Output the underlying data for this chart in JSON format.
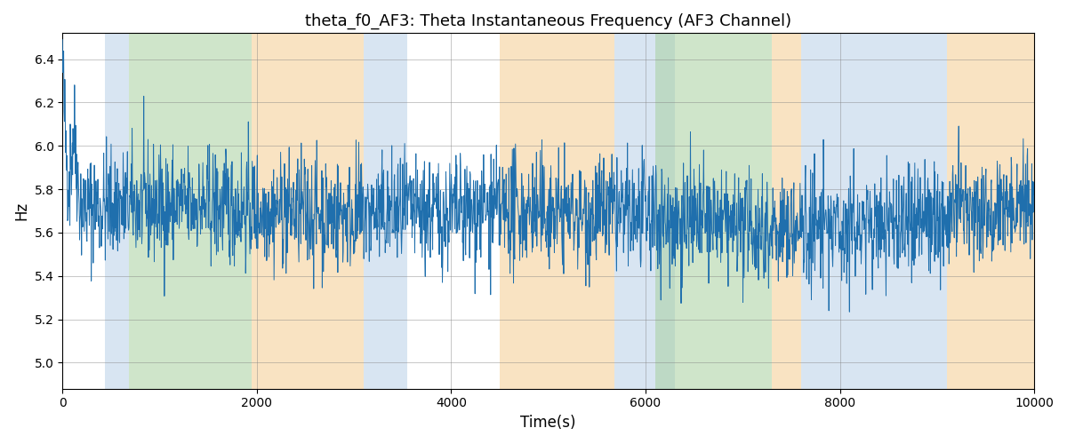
{
  "title": "theta_f0_AF3: Theta Instantaneous Frequency (AF3 Channel)",
  "xlabel": "Time(s)",
  "ylabel": "Hz",
  "xlim": [
    0,
    10000
  ],
  "ylim": [
    4.88,
    6.52
  ],
  "yticks": [
    5.0,
    5.2,
    5.4,
    5.6,
    5.8,
    6.0,
    6.2,
    6.4
  ],
  "xticks": [
    0,
    2000,
    4000,
    6000,
    8000,
    10000
  ],
  "line_color": "#1f6fad",
  "line_width": 0.7,
  "seed": 42,
  "n_points": 2500,
  "bg_bands": [
    {
      "xmin": 440,
      "xmax": 680,
      "color": "#b8d0e8",
      "alpha": 0.55
    },
    {
      "xmin": 680,
      "xmax": 1950,
      "color": "#a8d0a0",
      "alpha": 0.55
    },
    {
      "xmin": 1950,
      "xmax": 3100,
      "color": "#f5cc90",
      "alpha": 0.55
    },
    {
      "xmin": 3100,
      "xmax": 3550,
      "color": "#b8d0e8",
      "alpha": 0.55
    },
    {
      "xmin": 4500,
      "xmax": 5680,
      "color": "#f5cc90",
      "alpha": 0.55
    },
    {
      "xmin": 5680,
      "xmax": 6100,
      "color": "#b8d0e8",
      "alpha": 0.55
    },
    {
      "xmin": 6100,
      "xmax": 6300,
      "color": "#b8d0e8",
      "alpha": 0.55
    },
    {
      "xmin": 6100,
      "xmax": 7300,
      "color": "#a8d0a0",
      "alpha": 0.55
    },
    {
      "xmin": 7300,
      "xmax": 7600,
      "color": "#f5cc90",
      "alpha": 0.55
    },
    {
      "xmin": 7600,
      "xmax": 9100,
      "color": "#b8d0e8",
      "alpha": 0.55
    },
    {
      "xmin": 9100,
      "xmax": 10000,
      "color": "#f5cc90",
      "alpha": 0.55
    }
  ],
  "figsize": [
    12,
    5
  ],
  "dpi": 100
}
